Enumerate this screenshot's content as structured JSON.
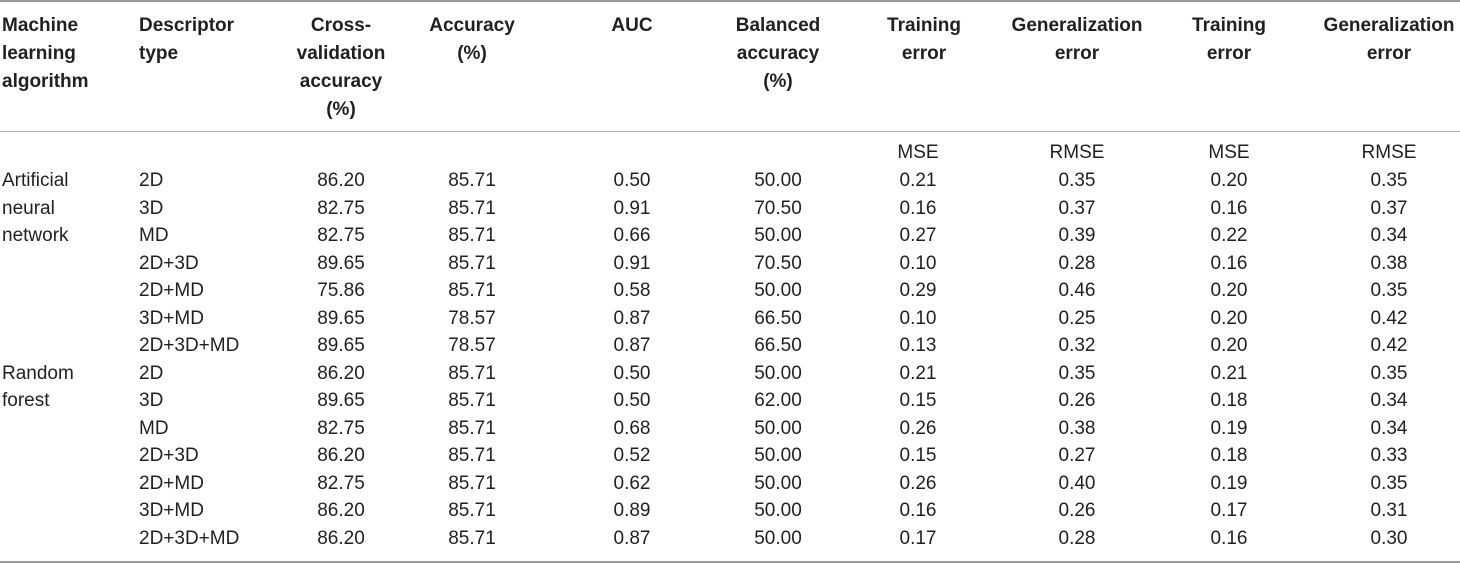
{
  "headers": [
    "Machine\nlearning\nalgorithm",
    "Descriptor\ntype",
    "Cross-\nvalidation\naccuracy\n(%)",
    "Accuracy\n(%)",
    "AUC",
    "Balanced\naccuracy\n(%)",
    "Training\nerror",
    "Generalization\nerror",
    "Training\nerror",
    "Generalization\nerror"
  ],
  "subheaders": [
    "",
    "",
    "",
    "",
    "",
    "",
    "MSE",
    "RMSE",
    "MSE",
    "RMSE"
  ],
  "groups": [
    {
      "algorithm": "Artificial\nneural\nnetwork",
      "rows": [
        [
          "2D",
          "86.20",
          "85.71",
          "0.50",
          "50.00",
          "0.21",
          "0.35",
          "0.20",
          "0.35"
        ],
        [
          "3D",
          "82.75",
          "85.71",
          "0.91",
          "70.50",
          "0.16",
          "0.37",
          "0.16",
          "0.37"
        ],
        [
          "MD",
          "82.75",
          "85.71",
          "0.66",
          "50.00",
          "0.27",
          "0.39",
          "0.22",
          "0.34"
        ],
        [
          "2D+3D",
          "89.65",
          "85.71",
          "0.91",
          "70.50",
          "0.10",
          "0.28",
          "0.16",
          "0.38"
        ],
        [
          "2D+MD",
          "75.86",
          "85.71",
          "0.58",
          "50.00",
          "0.29",
          "0.46",
          "0.20",
          "0.35"
        ],
        [
          "3D+MD",
          "89.65",
          "78.57",
          "0.87",
          "66.50",
          "0.10",
          "0.25",
          "0.20",
          "0.42"
        ],
        [
          "2D+3D+MD",
          "89.65",
          "78.57",
          "0.87",
          "66.50",
          "0.13",
          "0.32",
          "0.20",
          "0.42"
        ]
      ]
    },
    {
      "algorithm": "Random\nforest",
      "rows": [
        [
          "2D",
          "86.20",
          "85.71",
          "0.50",
          "50.00",
          "0.21",
          "0.35",
          "0.21",
          "0.35"
        ],
        [
          "3D",
          "89.65",
          "85.71",
          "0.50",
          "62.00",
          "0.15",
          "0.26",
          "0.18",
          "0.34"
        ],
        [
          "MD",
          "82.75",
          "85.71",
          "0.68",
          "50.00",
          "0.26",
          "0.38",
          "0.19",
          "0.34"
        ],
        [
          "2D+3D",
          "86.20",
          "85.71",
          "0.52",
          "50.00",
          "0.15",
          "0.27",
          "0.18",
          "0.33"
        ],
        [
          "2D+MD",
          "82.75",
          "85.71",
          "0.62",
          "50.00",
          "0.26",
          "0.40",
          "0.19",
          "0.35"
        ],
        [
          "3D+MD",
          "86.20",
          "85.71",
          "0.89",
          "50.00",
          "0.16",
          "0.26",
          "0.17",
          "0.31"
        ],
        [
          "2D+3D+MD",
          "86.20",
          "85.71",
          "0.87",
          "50.00",
          "0.17",
          "0.28",
          "0.16",
          "0.30"
        ]
      ]
    }
  ]
}
